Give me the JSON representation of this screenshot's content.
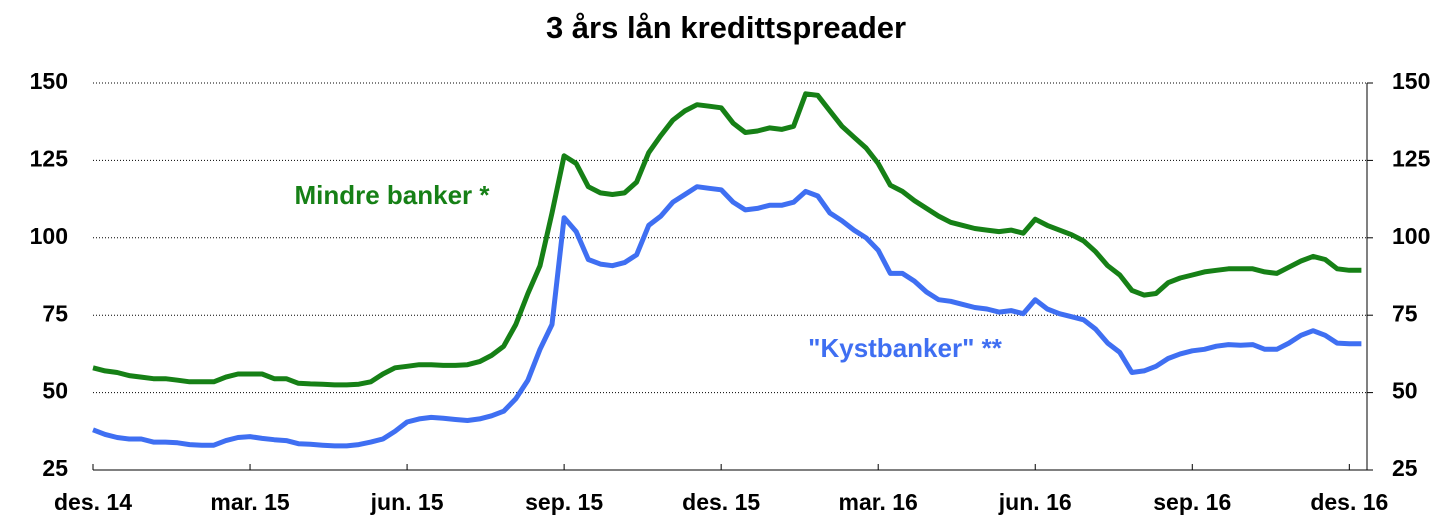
{
  "chart_data": {
    "type": "line",
    "title": "3 års lån kredittspreader",
    "categories": [
      "des. 14",
      null,
      null,
      null,
      null,
      null,
      null,
      null,
      null,
      null,
      null,
      null,
      null,
      "mar. 15",
      null,
      null,
      null,
      null,
      null,
      null,
      null,
      null,
      null,
      null,
      null,
      null,
      "jun. 15",
      null,
      null,
      null,
      null,
      null,
      null,
      null,
      null,
      null,
      null,
      null,
      null,
      "sep. 15",
      null,
      null,
      null,
      null,
      null,
      null,
      null,
      null,
      null,
      null,
      null,
      null,
      "des. 15",
      null,
      null,
      null,
      null,
      null,
      null,
      null,
      null,
      null,
      null,
      null,
      null,
      "mar. 16",
      null,
      null,
      null,
      null,
      null,
      null,
      null,
      null,
      null,
      null,
      null,
      null,
      "jun. 16",
      null,
      null,
      null,
      null,
      null,
      null,
      null,
      null,
      null,
      null,
      null,
      null,
      "sep. 16",
      null,
      null,
      null,
      null,
      null,
      null,
      null,
      null,
      null,
      null,
      null,
      null,
      "des. 16",
      null
    ],
    "series": [
      {
        "name": "Mindre banker *",
        "color": "#168016",
        "values": [
          58,
          57,
          56.5,
          55.5,
          55,
          54.5,
          54.5,
          54,
          53.5,
          53.5,
          53.5,
          55,
          56,
          56,
          56,
          54.5,
          54.5,
          53,
          52.8,
          52.7,
          52.5,
          52.5,
          52.7,
          53.5,
          56,
          58,
          58.5,
          59,
          59,
          58.8,
          58.8,
          59,
          60,
          62,
          65,
          72,
          82,
          91,
          108,
          126.5,
          124,
          116.5,
          114.5,
          114,
          114.5,
          118,
          127.5,
          133,
          138,
          141,
          143,
          142.5,
          142,
          137,
          134,
          134.5,
          135.5,
          135,
          136,
          146.5,
          146,
          141,
          136,
          132.5,
          129,
          124,
          117,
          115,
          112,
          109.5,
          107,
          105,
          104,
          103,
          102.5,
          102,
          102.5,
          101.5,
          106,
          104,
          102.5,
          101,
          99,
          95.5,
          91,
          88,
          83,
          81.5,
          82,
          85.5,
          87,
          88,
          89,
          89.5,
          90,
          90,
          90,
          89,
          88.5,
          90.5,
          92.5,
          94,
          93,
          90,
          89.5,
          89.5
        ]
      },
      {
        "name": "\"Kystbanker\" **",
        "color": "#3f6ff2",
        "values": [
          38,
          36.5,
          35.5,
          35,
          35,
          34,
          34,
          33.8,
          33.2,
          33,
          33,
          34.5,
          35.5,
          35.8,
          35.2,
          34.8,
          34.5,
          33.5,
          33.3,
          33,
          32.8,
          32.8,
          33.2,
          34,
          35,
          37.5,
          40.5,
          41.5,
          42,
          41.7,
          41.3,
          41,
          41.5,
          42.5,
          44,
          48,
          54,
          64,
          72,
          106.5,
          102,
          93,
          91.5,
          91,
          92,
          94.5,
          104,
          107,
          111.5,
          114,
          116.5,
          116,
          115.5,
          111.5,
          109,
          109.5,
          110.5,
          110.5,
          111.5,
          115,
          113.5,
          108,
          105.5,
          102.5,
          100,
          96,
          88.5,
          88.5,
          86,
          82.5,
          80,
          79.5,
          78.5,
          77.5,
          77,
          76,
          76.5,
          75.5,
          80,
          77,
          75.5,
          74.5,
          73.5,
          70.5,
          66,
          63,
          56.5,
          57,
          58.5,
          61,
          62.5,
          63.5,
          64,
          65,
          65.5,
          65.3,
          65.5,
          64,
          64,
          66,
          68.5,
          70,
          68.5,
          66,
          65.8,
          65.8
        ]
      }
    ],
    "ylim": [
      25,
      150
    ],
    "yticks": [
      25,
      50,
      75,
      100,
      125,
      150
    ],
    "y2lim": [
      25,
      150
    ],
    "y2ticks": [
      25,
      50,
      75,
      100,
      125,
      150
    ],
    "grid": true
  }
}
